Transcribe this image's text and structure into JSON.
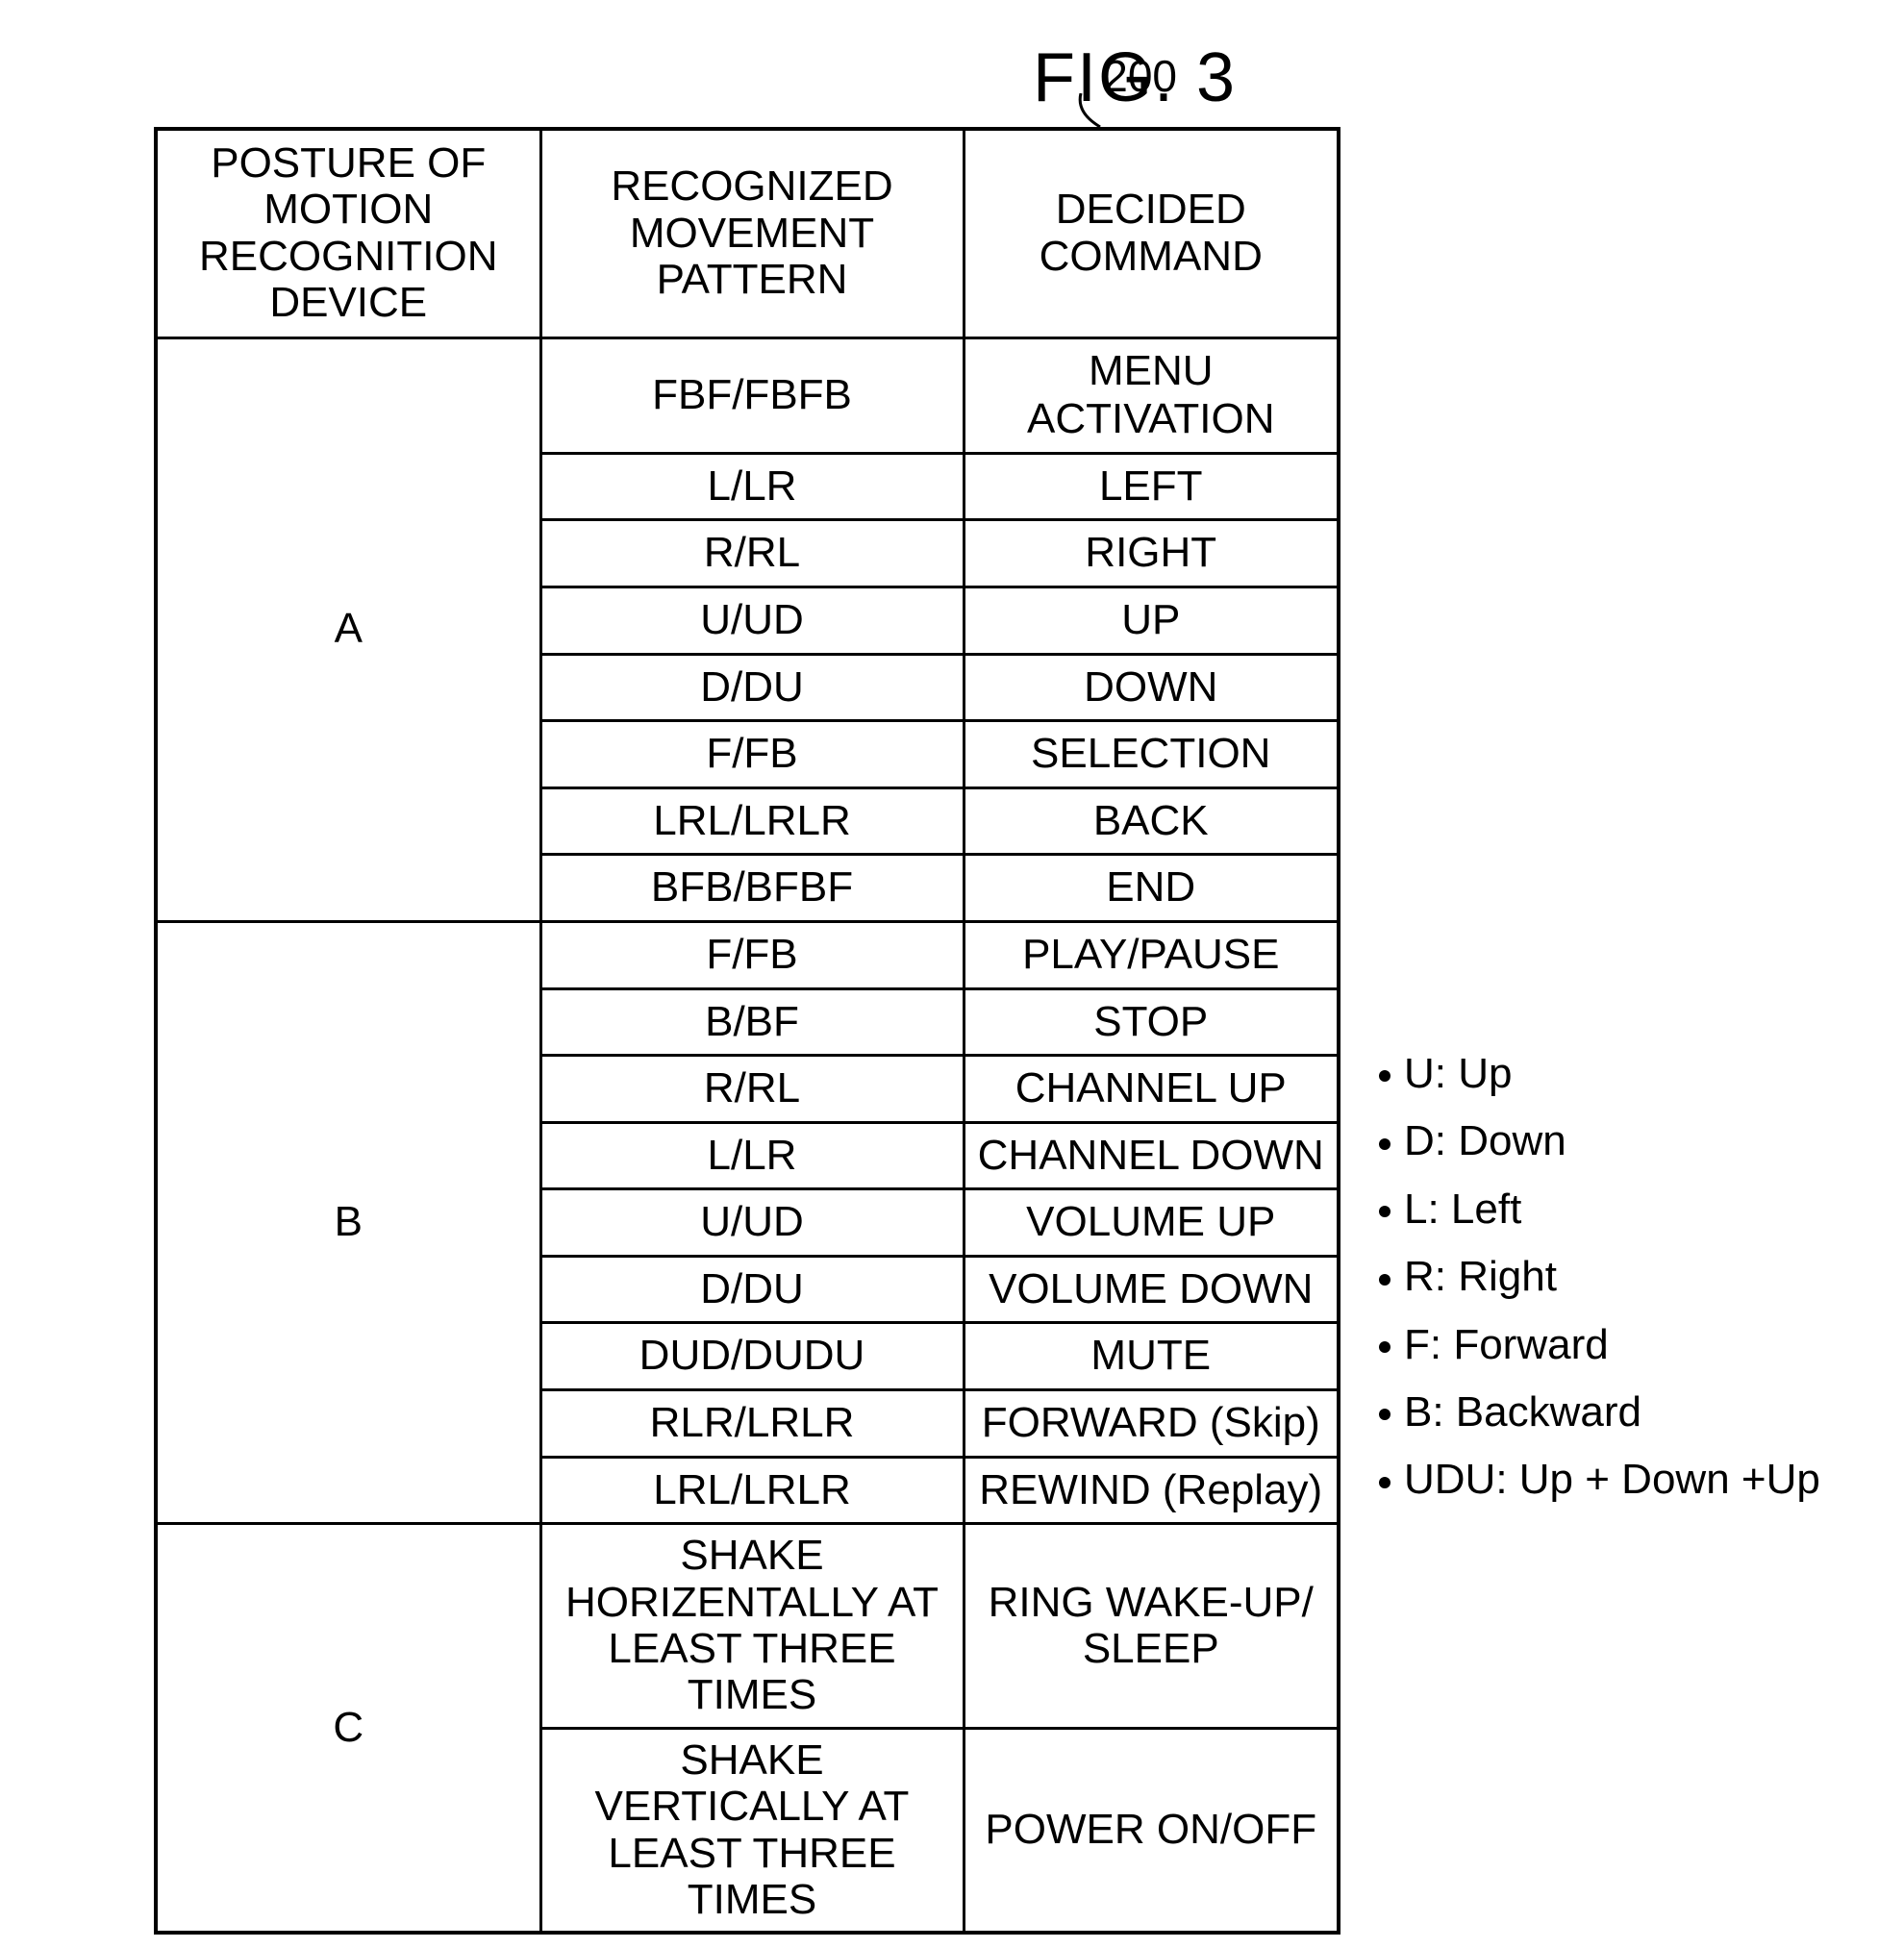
{
  "figure_title": "FIG. 3",
  "callout": "200",
  "headers": {
    "posture": "POSTURE OF MOTION RECOGNITION DEVICE",
    "pattern": "RECOGNIZED MOVEMENT PATTERN",
    "command": "DECIDED COMMAND"
  },
  "groups": [
    {
      "label": "A",
      "rows": [
        {
          "pattern": "FBF/FBFB",
          "command": "MENU ACTIVATION"
        },
        {
          "pattern": "L/LR",
          "command": "LEFT"
        },
        {
          "pattern": "R/RL",
          "command": "RIGHT"
        },
        {
          "pattern": "U/UD",
          "command": "UP"
        },
        {
          "pattern": "D/DU",
          "command": "DOWN"
        },
        {
          "pattern": "F/FB",
          "command": "SELECTION"
        },
        {
          "pattern": "LRL/LRLR",
          "command": "BACK"
        },
        {
          "pattern": "BFB/BFBF",
          "command": "END"
        }
      ]
    },
    {
      "label": "B",
      "rows": [
        {
          "pattern": "F/FB",
          "command": "PLAY/PAUSE"
        },
        {
          "pattern": "B/BF",
          "command": "STOP"
        },
        {
          "pattern": "R/RL",
          "command": "CHANNEL UP"
        },
        {
          "pattern": "L/LR",
          "command": "CHANNEL DOWN"
        },
        {
          "pattern": "U/UD",
          "command": "VOLUME UP"
        },
        {
          "pattern": "D/DU",
          "command": "VOLUME DOWN"
        },
        {
          "pattern": "DUD/DUDU",
          "command": "MUTE"
        },
        {
          "pattern": "RLR/LRLR",
          "command": "FORWARD (Skip)"
        },
        {
          "pattern": "LRL/LRLR",
          "command": "REWIND (Replay)"
        }
      ]
    },
    {
      "label": "C",
      "rows": [
        {
          "pattern": "SHAKE HORIZENTALLY AT LEAST THREE TIMES",
          "command": "RING WAKE-UP/ SLEEP",
          "twoLine": true
        },
        {
          "pattern": "SHAKE VERTICALLY AT LEAST THREE TIMES",
          "command": "POWER ON/OFF",
          "twoLine": true
        }
      ]
    }
  ],
  "legend": [
    "U: Up",
    "D: Down",
    "L: Left",
    "R: Right",
    "F: Forward",
    "B: Backward",
    "UDU: Up + Down +Up"
  ]
}
